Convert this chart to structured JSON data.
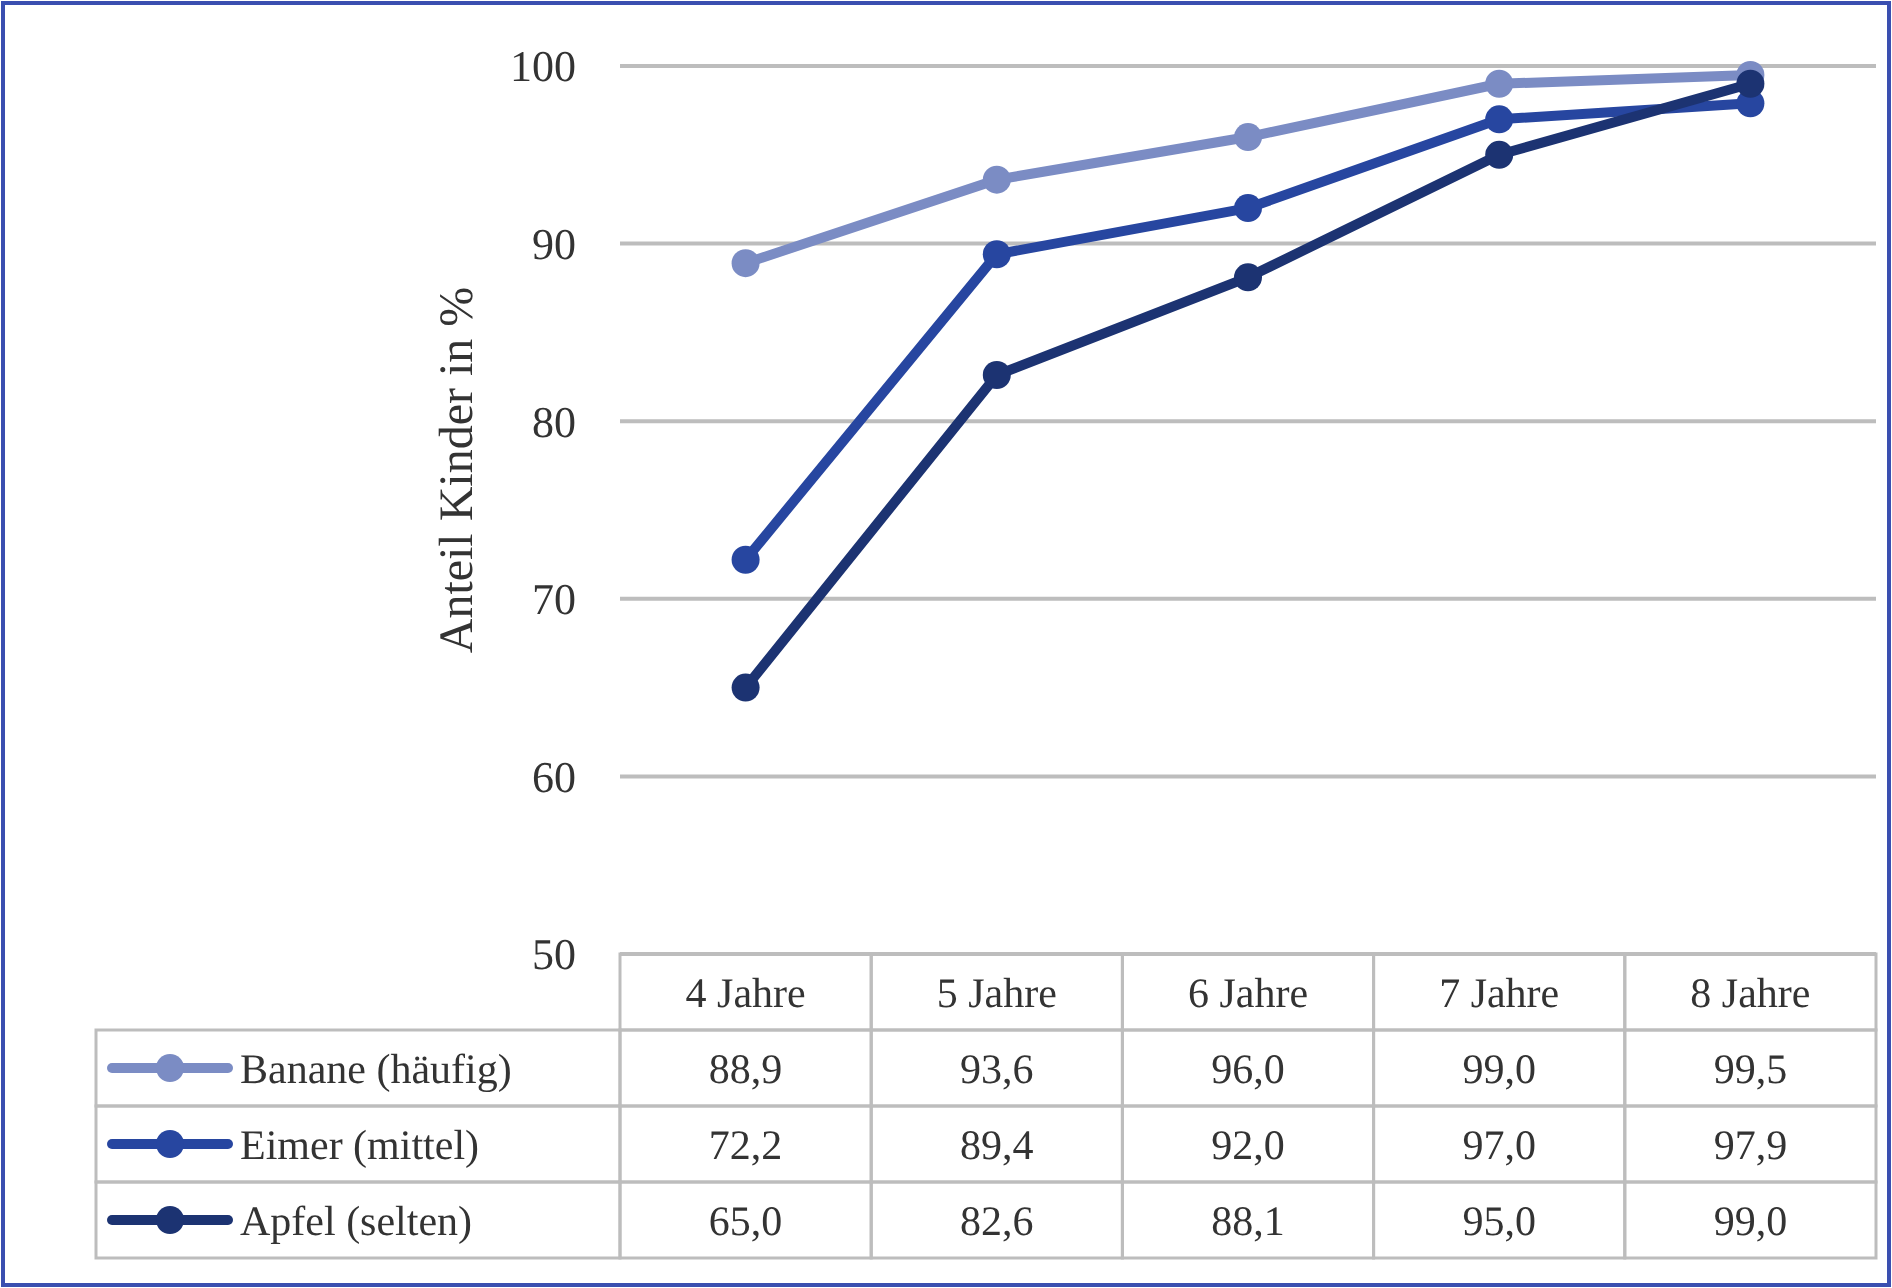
{
  "chart_data": {
    "type": "line",
    "ylabel": "Anteil Kinder in %",
    "categories": [
      "4 Jahre",
      "5 Jahre",
      "6 Jahre",
      "7 Jahre",
      "8 Jahre"
    ],
    "series": [
      {
        "name": "Banane (häufig)",
        "color": "#7b8cc4",
        "values": [
          88.9,
          93.6,
          96.0,
          99.0,
          99.5
        ],
        "value_labels": [
          "88,9",
          "93,6",
          "96,0",
          "99,0",
          "99,5"
        ]
      },
      {
        "name": "Eimer (mittel)",
        "color": "#2746a0",
        "values": [
          72.2,
          89.4,
          92.0,
          97.0,
          97.9
        ],
        "value_labels": [
          "72,2",
          "89,4",
          "92,0",
          "97,0",
          "97,9"
        ]
      },
      {
        "name": "Apfel (selten)",
        "color": "#1c3372",
        "values": [
          65.0,
          82.6,
          88.1,
          95.0,
          99.0
        ],
        "value_labels": [
          "65,0",
          "82,6",
          "88,1",
          "95,0",
          "99,0"
        ]
      }
    ],
    "ylim": [
      50,
      100
    ],
    "yticks": [
      50,
      60,
      70,
      80,
      90,
      100
    ],
    "grid": "y",
    "legend": "bottom",
    "data_labels": true,
    "marker": "circle",
    "line_style": "solid"
  }
}
